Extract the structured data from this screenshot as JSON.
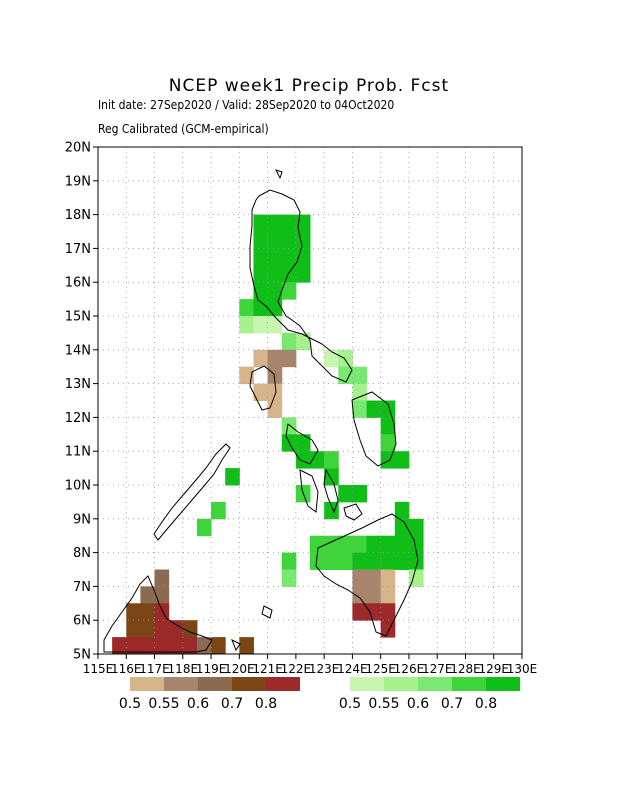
{
  "title": "NCEP week1 Precip Prob. Fcst",
  "init_line": "Init date: 27Sep2020 / Valid: 28Sep2020 to 04Oct2020",
  "calib_line": "Reg Calibrated (GCM-empirical)",
  "lat_labels": [
    "5N",
    "6N",
    "7N",
    "8N",
    "9N",
    "10N",
    "11N",
    "12N",
    "13N",
    "14N",
    "15N",
    "16N",
    "17N",
    "18N",
    "19N",
    "20N"
  ],
  "lon_labels": [
    "115E",
    "116E",
    "117E",
    "118E",
    "119E",
    "120E",
    "121E",
    "122E",
    "123E",
    "124E",
    "125E",
    "126E",
    "127E",
    "128E",
    "129E",
    "130E"
  ],
  "dry_legend": {
    "colors": [
      "#d6b48a",
      "#a7856c",
      "#8a6a50",
      "#7a4616",
      "#9c2a2a"
    ],
    "labels": [
      "0.5",
      "0.55",
      "0.6",
      "0.7",
      "0.8"
    ]
  },
  "wet_legend": {
    "colors": [
      "#c8f5b0",
      "#a6f08e",
      "#79e870",
      "#3ed43a",
      "#0fbf18"
    ],
    "labels": [
      "0.5",
      "0.55",
      "0.6",
      "0.7",
      "0.8"
    ]
  },
  "chart_data": {
    "type": "heatmap",
    "x_range": [
      115,
      130
    ],
    "y_range": [
      5,
      20
    ],
    "cell_size_deg": 0.5,
    "grid": true,
    "cells": [
      [
        120.5,
        17.5,
        "w4"
      ],
      [
        121,
        17.5,
        "w4"
      ],
      [
        121.5,
        17.5,
        "w4"
      ],
      [
        122,
        17.5,
        "w4"
      ],
      [
        120.5,
        17,
        "w4"
      ],
      [
        121,
        17,
        "w4"
      ],
      [
        121.5,
        17,
        "w4"
      ],
      [
        122,
        17,
        "w4"
      ],
      [
        120.5,
        16.5,
        "w4"
      ],
      [
        121,
        16.5,
        "w4"
      ],
      [
        121.5,
        16.5,
        "w4"
      ],
      [
        122,
        16.5,
        "w4"
      ],
      [
        120.5,
        16,
        "w4"
      ],
      [
        121,
        16,
        "w4"
      ],
      [
        121.5,
        16,
        "w4"
      ],
      [
        122,
        16,
        "w4"
      ],
      [
        120.5,
        15.5,
        "w4"
      ],
      [
        121,
        15.5,
        "w4"
      ],
      [
        121.5,
        15.5,
        "w3"
      ],
      [
        120,
        15,
        "w3"
      ],
      [
        120.5,
        15,
        "w4"
      ],
      [
        121,
        15,
        "w4"
      ],
      [
        120,
        14.5,
        "w1"
      ],
      [
        120.5,
        14.5,
        "w0"
      ],
      [
        121,
        14.5,
        "w0"
      ],
      [
        121.5,
        14,
        "w2"
      ],
      [
        122,
        14,
        "w1"
      ],
      [
        120.5,
        13.5,
        "d0"
      ],
      [
        121,
        13.5,
        "d1"
      ],
      [
        121.5,
        13.5,
        "d1"
      ],
      [
        120,
        13,
        "d0"
      ],
      [
        121,
        13,
        "d1"
      ],
      [
        121,
        12.5,
        "d0"
      ],
      [
        120.5,
        12.5,
        "d0"
      ],
      [
        121,
        12,
        "d0"
      ],
      [
        123,
        13.5,
        "w0"
      ],
      [
        123.5,
        13.5,
        "w1"
      ],
      [
        123.5,
        13,
        "w2"
      ],
      [
        124,
        13,
        "w2"
      ],
      [
        124,
        12.5,
        "w1"
      ],
      [
        121.5,
        11.5,
        "w2"
      ],
      [
        121.5,
        11,
        "w4"
      ],
      [
        122,
        11,
        "w4"
      ],
      [
        122,
        10.5,
        "w4"
      ],
      [
        122.5,
        10.5,
        "w4"
      ],
      [
        123,
        10,
        "w4"
      ],
      [
        123,
        10.5,
        "w3"
      ],
      [
        123.5,
        9.5,
        "w4"
      ],
      [
        122,
        9.5,
        "w3"
      ],
      [
        123,
        9,
        "w4"
      ],
      [
        124,
        9.5,
        "w4"
      ],
      [
        124,
        12,
        "w2"
      ],
      [
        124.5,
        12,
        "w4"
      ],
      [
        125,
        12,
        "w4"
      ],
      [
        125,
        11.5,
        "w4"
      ],
      [
        125,
        11,
        "w3"
      ],
      [
        125,
        10.5,
        "w4"
      ],
      [
        125.5,
        10.5,
        "w4"
      ],
      [
        119.5,
        10,
        "w4"
      ],
      [
        119,
        9,
        "w3"
      ],
      [
        118.5,
        8.5,
        "w3"
      ],
      [
        122.5,
        8,
        "w3"
      ],
      [
        123,
        8,
        "w3"
      ],
      [
        123.5,
        8,
        "w3"
      ],
      [
        124,
        8,
        "w3"
      ],
      [
        124.5,
        8,
        "w4"
      ],
      [
        125,
        8,
        "w4"
      ],
      [
        125.5,
        8,
        "w4"
      ],
      [
        126,
        8,
        "w4"
      ],
      [
        122.5,
        7.5,
        "w3"
      ],
      [
        123,
        7.5,
        "w3"
      ],
      [
        123.5,
        7.5,
        "w3"
      ],
      [
        124,
        7.5,
        "w4"
      ],
      [
        124.5,
        7.5,
        "w4"
      ],
      [
        125,
        7.5,
        "w4"
      ],
      [
        125.5,
        7.5,
        "w4"
      ],
      [
        126,
        7.5,
        "w4"
      ],
      [
        125.5,
        9,
        "w4"
      ],
      [
        125.5,
        8.5,
        "w4"
      ],
      [
        126,
        8.5,
        "w4"
      ],
      [
        121.5,
        7.5,
        "w3"
      ],
      [
        121.5,
        7,
        "w2"
      ],
      [
        126,
        7,
        "w1"
      ],
      [
        124,
        7,
        "d1"
      ],
      [
        124.5,
        7,
        "d1"
      ],
      [
        125,
        7,
        "d0"
      ],
      [
        124,
        6.5,
        "d1"
      ],
      [
        124.5,
        6.5,
        "d1"
      ],
      [
        125,
        6.5,
        "d0"
      ],
      [
        124,
        6,
        "d4"
      ],
      [
        124.5,
        6,
        "d4"
      ],
      [
        125,
        6,
        "d4"
      ],
      [
        125,
        5.5,
        "d4"
      ],
      [
        117,
        7,
        "d2"
      ],
      [
        116.5,
        6.5,
        "d2"
      ],
      [
        117,
        6.5,
        "d2"
      ],
      [
        116,
        6,
        "d3"
      ],
      [
        116.5,
        6,
        "d3"
      ],
      [
        117,
        6,
        "d4"
      ],
      [
        116,
        5.5,
        "d3"
      ],
      [
        116.5,
        5.5,
        "d3"
      ],
      [
        117,
        5.5,
        "d4"
      ],
      [
        117.5,
        5.5,
        "d4"
      ],
      [
        118,
        5.5,
        "d3"
      ],
      [
        115.5,
        5,
        "d4"
      ],
      [
        116,
        5,
        "d4"
      ],
      [
        116.5,
        5,
        "d4"
      ],
      [
        117,
        5,
        "d4"
      ],
      [
        117.5,
        5,
        "d4"
      ],
      [
        118,
        5,
        "d4"
      ],
      [
        118.5,
        5,
        "d2"
      ],
      [
        119,
        5,
        "d3"
      ],
      [
        120,
        5,
        "d3"
      ]
    ]
  }
}
